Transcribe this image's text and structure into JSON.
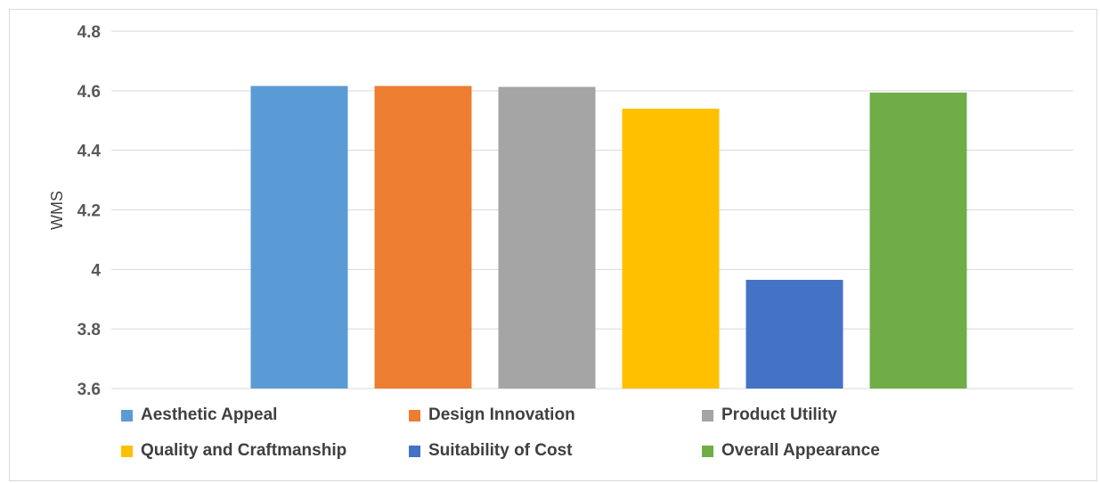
{
  "chart_data": {
    "type": "bar",
    "categories": [
      "Aesthetic Appeal",
      "Design Innovation",
      "Product Utility",
      "Quality and Craftmanship",
      "Suitability of Cost",
      "Overall Appearance"
    ],
    "values": [
      4.616,
      4.616,
      4.613,
      4.54,
      3.965,
      4.594
    ],
    "colors": [
      "#5b9bd5",
      "#ed7d31",
      "#a5a5a5",
      "#ffc000",
      "#4472c4",
      "#70ad47"
    ],
    "ylabel": "WMS",
    "xlabel": "",
    "ylim": [
      3.6,
      4.8
    ],
    "yticks": [
      "3.6",
      "3.8",
      "4",
      "4.2",
      "4.4",
      "4.6",
      "4.8"
    ],
    "grid": true,
    "legend_position": "bottom"
  }
}
